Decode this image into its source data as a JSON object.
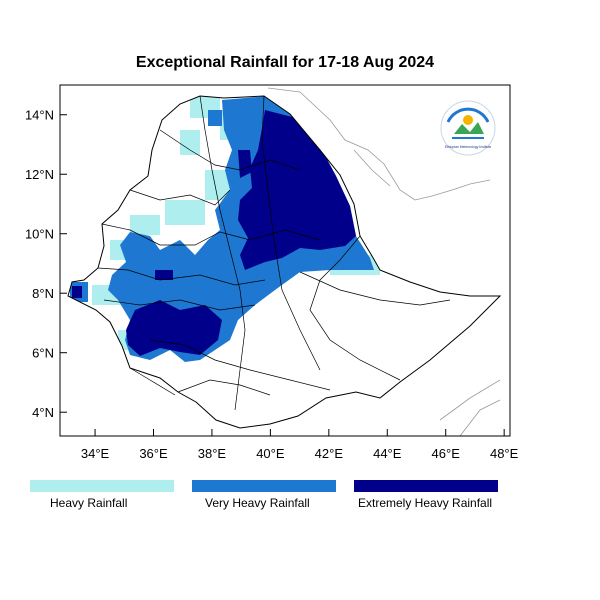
{
  "title": "Exceptional Rainfall for 17-18 Aug 2024",
  "axes": {
    "x_ticks": [
      "34°E",
      "36°E",
      "38°E",
      "40°E",
      "42°E",
      "44°E",
      "46°E",
      "48°E"
    ],
    "y_ticks": [
      "14°N",
      "12°N",
      "10°N",
      "8°N",
      "6°N",
      "4°N"
    ],
    "lon_range": [
      32.8,
      48.2
    ],
    "lat_range": [
      3.2,
      15.0
    ]
  },
  "legend": [
    {
      "label": "Heavy Rainfall",
      "color": "#aeeeee"
    },
    {
      "label": "Very Heavy Rainfall",
      "color": "#1e78d2"
    },
    {
      "label": "Extremely Heavy Rainfall",
      "color": "#00008b"
    }
  ],
  "logo": {
    "icon": "meteorology-institute-logo",
    "text": "Ethiopian Meteorology Institute"
  },
  "colors": {
    "heavy": "#aeeeee",
    "very_heavy": "#1e78d2",
    "extreme": "#00008b",
    "boundary": "#000000",
    "neighbor": "#9a9a9a"
  }
}
